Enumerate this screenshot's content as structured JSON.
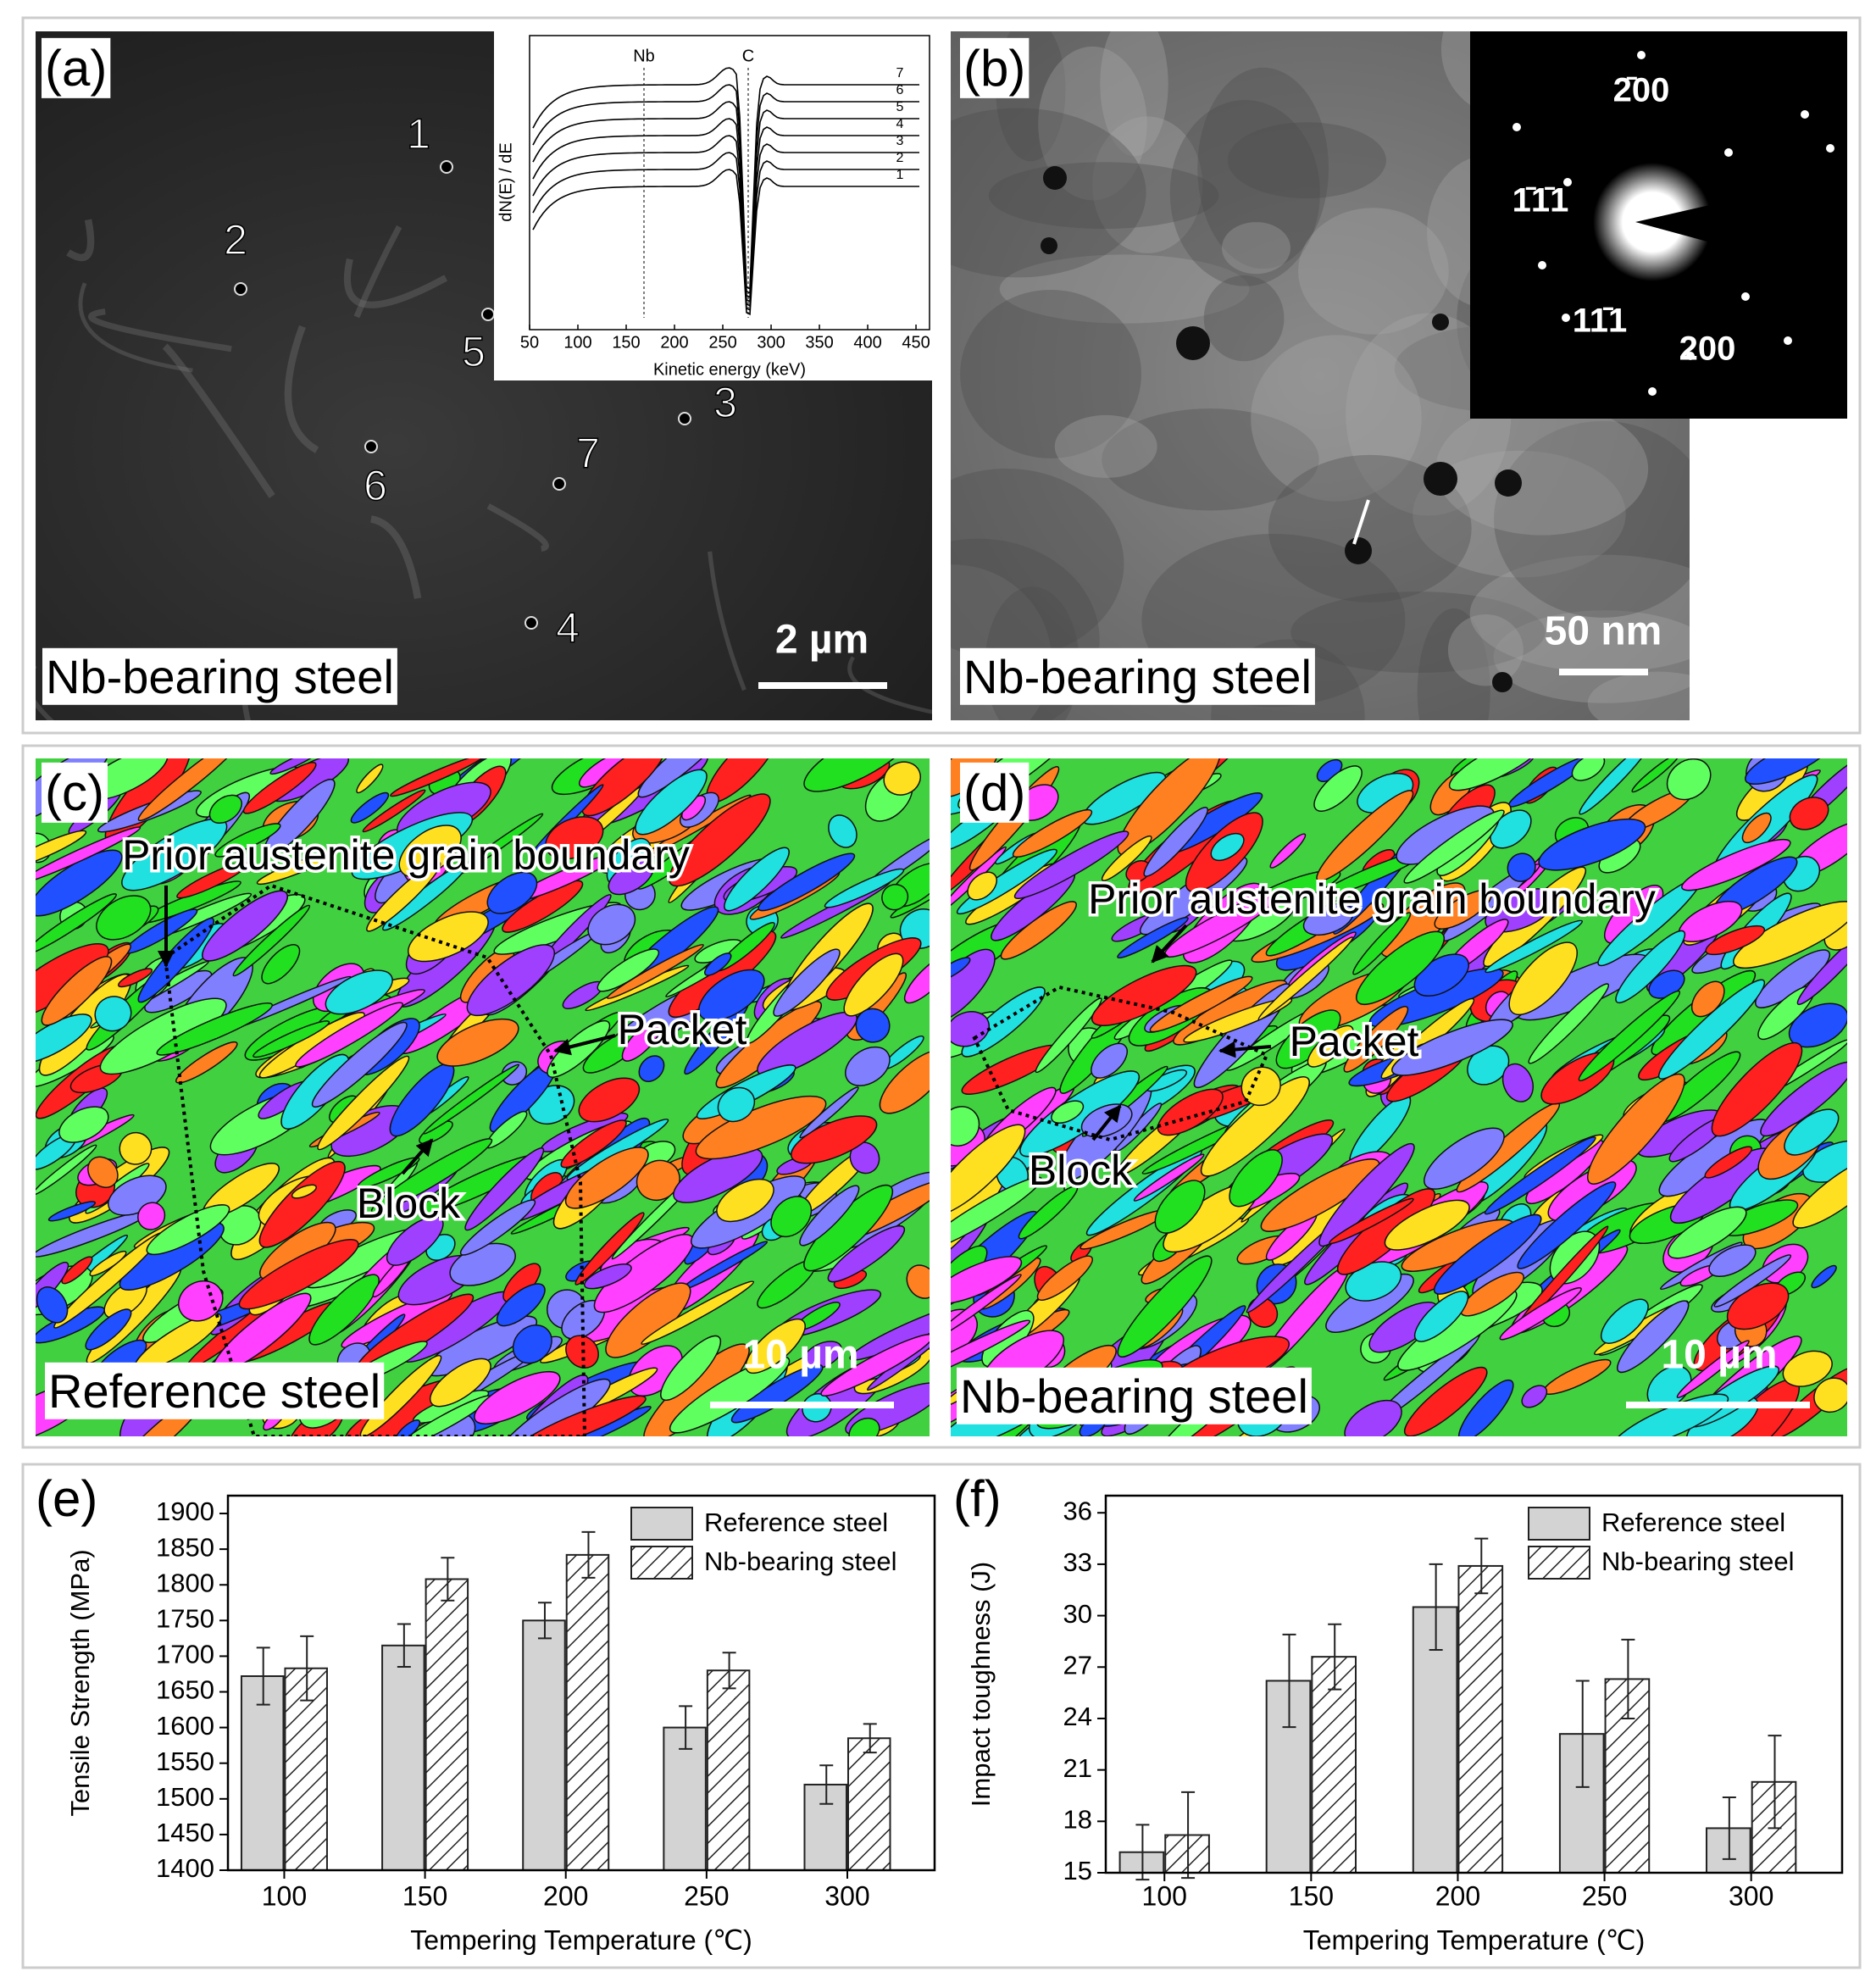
{
  "panels": {
    "a": {
      "label": "(a)",
      "caption": "Nb-bearing steel",
      "scale_bar": "2 µm",
      "points": [
        "1",
        "2",
        "3",
        "4",
        "5",
        "6",
        "7"
      ],
      "inset": {
        "xlim": [
          50,
          464
        ],
        "xticks": [
          50,
          100,
          150,
          200,
          250,
          300,
          350,
          400,
          450
        ],
        "xlabel": "Kinetic energy (keV)",
        "ylabel": "dN(E) / dE",
        "peaks": [
          "Nb",
          "C"
        ],
        "curve_labels": [
          "7",
          "6",
          "5",
          "4",
          "3",
          "2",
          "1"
        ]
      }
    },
    "b": {
      "label": "(b)",
      "caption": "Nb-bearing steel",
      "scale_bar": "50 nm",
      "spots": [
        "2̄00",
        "1̄1̄1",
        "11̄1",
        "200"
      ]
    },
    "c": {
      "label": "(c)",
      "caption": "Reference steel",
      "scale_bar": "10 µm",
      "annotations": [
        "Prior austenite grain boundary",
        "Packet",
        "Block"
      ]
    },
    "d": {
      "label": "(d)",
      "caption": "Nb-bearing steel",
      "scale_bar": "10 µm",
      "annotations": [
        "Prior austenite grain boundary",
        "Packet",
        "Block"
      ]
    }
  },
  "chart_data": [
    {
      "type": "bar",
      "panel_label": "(e)",
      "x_label": "Tempering Temperature (℃)",
      "y_label": "Tensile Strength (MPa)",
      "categories": [
        "100",
        "150",
        "200",
        "250",
        "300"
      ],
      "ylim": [
        1400,
        1925
      ],
      "yticks": [
        1400,
        1450,
        1500,
        1550,
        1600,
        1650,
        1700,
        1750,
        1800,
        1850,
        1900
      ],
      "legend": "upper-right",
      "series": [
        {
          "name": "Reference steel",
          "color": "#d3d3d3",
          "pattern": "solid",
          "values": [
            1672,
            1715,
            1750,
            1600,
            1520
          ],
          "errors": [
            40,
            30,
            25,
            30,
            27
          ]
        },
        {
          "name": "Nb-bearing steel",
          "color": "#ffffff",
          "pattern": "hatch",
          "values": [
            1683,
            1808,
            1842,
            1680,
            1585
          ],
          "errors": [
            45,
            30,
            32,
            25,
            20
          ]
        }
      ]
    },
    {
      "type": "bar",
      "panel_label": "(f)",
      "x_label": "Tempering Temperature (℃)",
      "y_label": "Impact toughness (J)",
      "categories": [
        "100",
        "150",
        "200",
        "250",
        "300"
      ],
      "ylim": [
        15,
        37
      ],
      "yticks": [
        15,
        18,
        21,
        24,
        27,
        30,
        33,
        36
      ],
      "legend": "upper-right",
      "series": [
        {
          "name": "Reference steel",
          "color": "#d3d3d3",
          "pattern": "solid",
          "values": [
            16.2,
            26.2,
            30.5,
            23.1,
            17.6
          ],
          "errors": [
            1.6,
            2.7,
            2.5,
            3.1,
            1.8
          ]
        },
        {
          "name": "Nb-bearing steel",
          "color": "#ffffff",
          "pattern": "hatch",
          "values": [
            17.2,
            27.6,
            32.9,
            26.3,
            20.3
          ],
          "errors": [
            2.5,
            1.9,
            1.6,
            2.3,
            2.7
          ]
        }
      ]
    }
  ]
}
